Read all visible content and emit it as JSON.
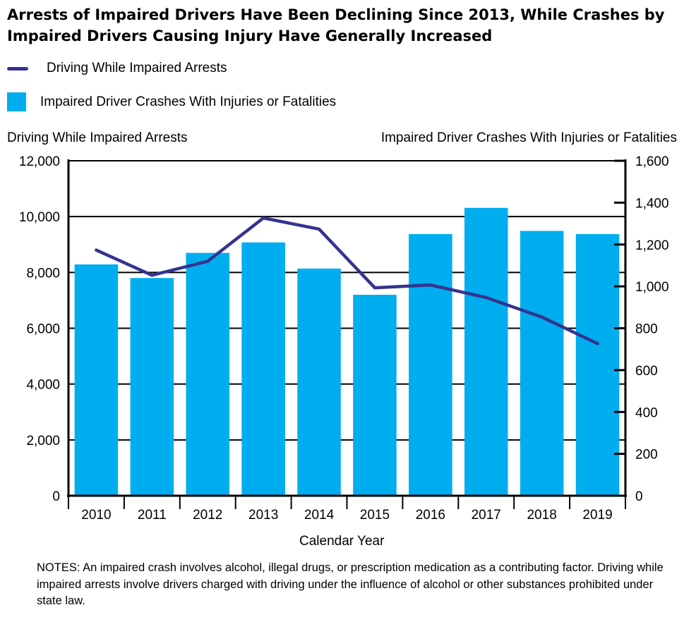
{
  "title": "Arrests of Impaired Drivers Have Been Declining Since 2013, While Crashes by Impaired Drivers Causing Injury Have Generally Increased",
  "legend": {
    "line_label": "Driving While Impaired Arrests",
    "bar_label": "Impaired Driver Crashes With Injuries or Fatalities"
  },
  "left_axis_title": "Driving While Impaired Arrests",
  "right_axis_title": "Impaired Driver Crashes With Injuries or Fatalities",
  "x_axis_title": "Calendar Year",
  "notes": "NOTES: An impaired crash involves alcohol, illegal drugs, or prescription medication as a contributing factor. Driving while impaired arrests involve drivers charged with driving under the influence of alcohol or other substances prohibited under state law.",
  "colors": {
    "bar": "#00aeef",
    "line": "#35338f",
    "axis": "#000000"
  },
  "chart_data": {
    "type": "bar",
    "categories": [
      "2010",
      "2011",
      "2012",
      "2013",
      "2014",
      "2015",
      "2016",
      "2017",
      "2018",
      "2019"
    ],
    "series": [
      {
        "name": "Impaired Driver Crashes With Injuries or Fatalities",
        "type": "bar",
        "axis": "right",
        "values": [
          1105,
          1040,
          1160,
          1210,
          1085,
          960,
          1250,
          1375,
          1265,
          1250
        ]
      },
      {
        "name": "Driving While Impaired Arrests",
        "type": "line",
        "axis": "left",
        "values": [
          8800,
          7900,
          8400,
          9950,
          9550,
          7450,
          7550,
          7100,
          6400,
          5450
        ]
      }
    ],
    "left_axis": {
      "ylim": [
        0,
        12000
      ],
      "ticks": [
        0,
        2000,
        4000,
        6000,
        8000,
        10000,
        12000
      ],
      "tick_labels": [
        "0",
        "2,000",
        "4,000",
        "6,000",
        "8,000",
        "10,000",
        "12,000"
      ]
    },
    "right_axis": {
      "ylim": [
        0,
        1600
      ],
      "ticks": [
        0,
        200,
        400,
        600,
        800,
        1000,
        1200,
        1400,
        1600
      ],
      "tick_labels": [
        "0",
        "200",
        "400",
        "600",
        "800",
        "1,000",
        "1,200",
        "1,400",
        "1,600"
      ]
    },
    "xlabel": "Calendar Year",
    "grid": true
  }
}
